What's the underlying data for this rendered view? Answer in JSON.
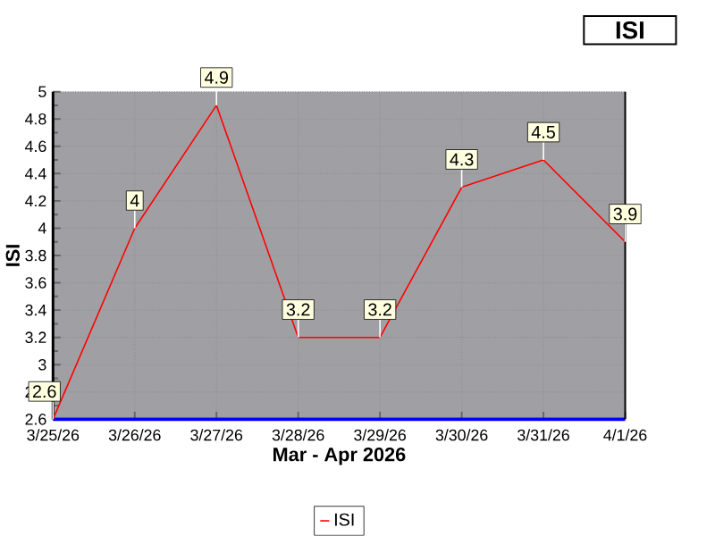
{
  "chart_data": {
    "type": "line",
    "title": "ISI",
    "xlabel": "Mar - Apr 2026",
    "ylabel": "ISI",
    "categories": [
      "3/25/26",
      "3/26/26",
      "3/27/26",
      "3/28/26",
      "3/29/26",
      "3/30/26",
      "3/31/26",
      "4/1/26"
    ],
    "series": [
      {
        "name": "ISI",
        "color": "#ff0000",
        "values": [
          2.6,
          4,
          4.9,
          3.2,
          3.2,
          4.3,
          4.5,
          3.9
        ]
      }
    ],
    "ylim": [
      2.6,
      5
    ],
    "yticks": [
      2.6,
      2.8,
      3,
      3.2,
      3.4,
      3.6,
      3.8,
      4,
      4.2,
      4.4,
      4.6,
      4.8,
      5
    ],
    "grid": true,
    "legend": "bottom",
    "data_labels": true,
    "marker": "none",
    "line_style": "solid"
  }
}
